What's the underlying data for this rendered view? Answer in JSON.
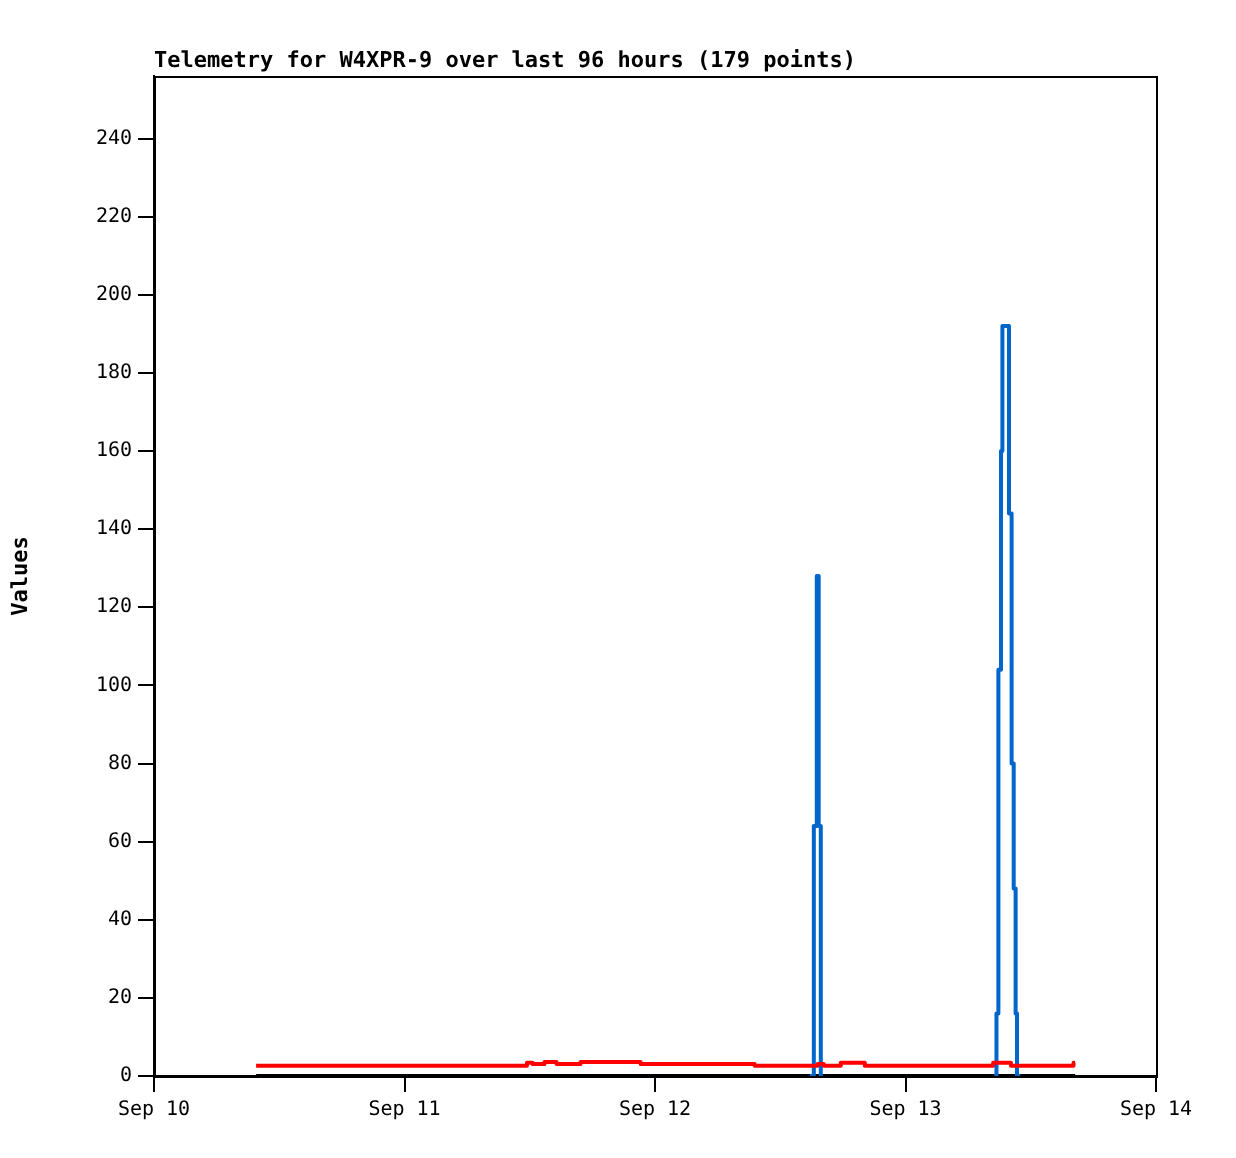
{
  "chart_data": {
    "type": "step",
    "title": "Telemetry for W4XPR-9 over last 96 hours (179 points)",
    "ylabel": "Values",
    "xlim": [
      "--09-10",
      "--09-14"
    ],
    "xticks": [
      {
        "value": "--09-10",
        "label": "Sep 10"
      },
      {
        "value": "--09-11",
        "label": "Sep 11"
      },
      {
        "value": "--09-12",
        "label": "Sep 12"
      },
      {
        "value": "--09-13",
        "label": "Sep 13"
      },
      {
        "value": "--09-14",
        "label": "Sep 14"
      }
    ],
    "ylim": [
      0,
      256
    ],
    "yticks": [
      0,
      20,
      40,
      60,
      80,
      100,
      120,
      140,
      160,
      180,
      200,
      220,
      240
    ],
    "grid": false,
    "legend": false,
    "series": [
      {
        "color": "#ff0000",
        "x": [
          "--09-10T09:47",
          "--09-11T11:44",
          "--09-11T12:16",
          "--09-11T13:25",
          "--09-11T14:34",
          "--09-11T16:52",
          "--09-11T22:37",
          "--09-12T09:33",
          "--09-12T15:35",
          "--09-12T16:10",
          "--09-12T17:48",
          "--09-12T20:06",
          "--09-13T08:24",
          "--09-13T10:06",
          "--09-13T16:06",
          "--09-13T16:15"
        ],
        "values": [
          2.6,
          3.4,
          3.1,
          3.6,
          3.1,
          3.6,
          3.1,
          2.6,
          3.1,
          2.6,
          3.4,
          2.6,
          3.4,
          2.6,
          3.4,
          3.4
        ]
      },
      {
        "color": "#0066cc",
        "x": [
          "--09-12T14:50",
          "--09-12T15:13",
          "--09-12T15:30",
          "--09-12T15:41",
          "--09-12T15:53",
          "--09-12T16:05",
          "--09-12T18:00",
          "--09-13T08:30",
          "--09-13T08:43",
          "--09-13T08:54",
          "--09-13T09:09",
          "--09-13T09:17",
          "--09-13T09:55",
          "--09-13T10:10",
          "--09-13T10:22",
          "--09-13T10:33",
          "--09-13T10:41",
          "--09-13T11:00"
        ],
        "values": [
          0,
          64,
          128,
          64,
          0,
          0,
          null,
          0,
          16,
          104,
          160,
          192,
          144,
          80,
          48,
          16,
          0,
          0
        ]
      },
      {
        "color": "#000000",
        "x": [
          "--09-10T09:47",
          "--09-13T16:15"
        ],
        "values": [
          0,
          0
        ]
      }
    ]
  }
}
